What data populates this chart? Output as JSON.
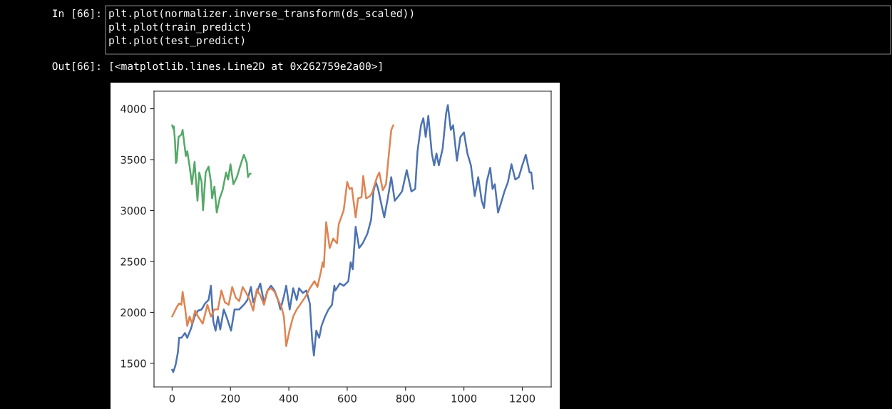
{
  "chart_data": {
    "type": "line",
    "annotations": [
      "In [66]:",
      "plt.plot(normalizer.inverse_transform(ds_scaled))",
      "plt.plot(train_predict)",
      "plt.plot(test_predict)",
      "Out[66]:",
      "[<matplotlib.lines.Line2D at 0x262759e2a00>]"
    ],
    "xlim": [
      -62,
      1299
    ],
    "ylim": [
      1268,
      4172
    ],
    "xticks": [
      0,
      200,
      400,
      600,
      800,
      1000,
      1200
    ],
    "yticks": [
      1500,
      2000,
      2500,
      3000,
      3500,
      4000
    ],
    "grid": false,
    "legend": false,
    "marker": "none",
    "line_style": "solid",
    "series": [
      {
        "color": "#4c72b0",
        "x": [
          0,
          4,
          12,
          20,
          24,
          32,
          44,
          52,
          65,
          77,
          89,
          101,
          113,
          125,
          133,
          141,
          149,
          157,
          165,
          177,
          189,
          202,
          214,
          230,
          246,
          258,
          270,
          278,
          290,
          302,
          315,
          327,
          339,
          351,
          363,
          371,
          383,
          391,
          403,
          415,
          427,
          435,
          448,
          460,
          472,
          480,
          486,
          494,
          504,
          512,
          524,
          536,
          548,
          556,
          559,
          575,
          588,
          604,
          612,
          619,
          629,
          641,
          653,
          669,
          682,
          690,
          698,
          706,
          718,
          727,
          739,
          751,
          763,
          776,
          788,
          804,
          820,
          833,
          841,
          853,
          861,
          869,
          878,
          890,
          898,
          906,
          914,
          927,
          939,
          945,
          955,
          963,
          976,
          988,
          1000,
          1012,
          1024,
          1037,
          1049,
          1061,
          1069,
          1078,
          1090,
          1098,
          1106,
          1117,
          1127,
          1139,
          1151,
          1163,
          1176,
          1188,
          1200,
          1212,
          1225,
          1231,
          1237
        ],
        "values": [
          1437,
          1414,
          1484,
          1611,
          1750,
          1750,
          1797,
          1750,
          1843,
          1959,
          2017,
          2029,
          2087,
          2122,
          2261,
          1913,
          1820,
          1959,
          1832,
          2029,
          1936,
          1820,
          2029,
          2029,
          2075,
          2122,
          2249,
          2098,
          2191,
          2284,
          2098,
          2214,
          2261,
          2214,
          2122,
          2029,
          2156,
          2261,
          2029,
          2237,
          2122,
          2237,
          2191,
          2214,
          2087,
          1727,
          1576,
          1820,
          1750,
          1867,
          1959,
          2029,
          2075,
          2261,
          2214,
          2284,
          2261,
          2307,
          2493,
          2423,
          2840,
          2632,
          2678,
          2771,
          2910,
          3188,
          3281,
          3212,
          3049,
          2933,
          3119,
          3328,
          3096,
          3142,
          3188,
          3397,
          3188,
          3212,
          3583,
          3838,
          3907,
          3722,
          3930,
          3560,
          3444,
          3560,
          3444,
          3606,
          3954,
          4035,
          3791,
          3838,
          3490,
          3722,
          3768,
          3560,
          3444,
          3142,
          3328,
          3096,
          3026,
          3281,
          3420,
          3212,
          3258,
          2980,
          3073,
          3188,
          3281,
          3455,
          3304,
          3328,
          3444,
          3548,
          3374,
          3374,
          3212
        ]
      },
      {
        "color": "#dd8452",
        "x": [
          0,
          16,
          24,
          32,
          36,
          44,
          52,
          60,
          68,
          79,
          89,
          105,
          121,
          133,
          145,
          157,
          169,
          181,
          194,
          206,
          218,
          230,
          242,
          254,
          266,
          278,
          290,
          302,
          315,
          327,
          339,
          351,
          363,
          375,
          383,
          391,
          402,
          415,
          427,
          444,
          460,
          472,
          488,
          498,
          510,
          516,
          520,
          528,
          540,
          552,
          565,
          571,
          588,
          600,
          608,
          616,
          629,
          637,
          649,
          655,
          665,
          678,
          686,
          702,
          710,
          722,
          733,
          743,
          751,
          758
        ],
        "values": [
          1959,
          2052,
          2087,
          2075,
          2203,
          2052,
          1867,
          1959,
          1890,
          2017,
          1959,
          1890,
          2075,
          1959,
          2029,
          2029,
          2214,
          2098,
          2075,
          2249,
          2145,
          2110,
          2249,
          2191,
          2122,
          2017,
          2226,
          2168,
          2075,
          2214,
          2237,
          2203,
          2122,
          2052,
          1959,
          1669,
          1818,
          1959,
          2029,
          2098,
          2168,
          2237,
          2307,
          2249,
          2400,
          2493,
          2446,
          2887,
          2632,
          2725,
          2678,
          2864,
          3003,
          3281,
          3212,
          3223,
          2933,
          3119,
          3130,
          3339,
          3119,
          3142,
          3177,
          3328,
          3374,
          3200,
          3258,
          3560,
          3791,
          3838
        ]
      },
      {
        "color": "#55a868",
        "x": [
          0,
          4,
          6,
          10,
          13,
          16,
          22,
          32,
          36,
          47,
          52,
          60,
          68,
          77,
          82,
          87,
          93,
          101,
          106,
          115,
          125,
          133,
          137,
          145,
          153,
          163,
          173,
          185,
          192,
          200,
          210,
          222,
          234,
          246,
          256,
          260,
          266,
          269
        ],
        "values": [
          3838,
          3803,
          3826,
          3675,
          3467,
          3490,
          3722,
          3745,
          3792,
          3536,
          3583,
          3432,
          3258,
          3478,
          3281,
          3096,
          3374,
          3281,
          3003,
          3374,
          3432,
          3281,
          3119,
          3235,
          2980,
          3119,
          3200,
          3374,
          3304,
          3455,
          3258,
          3328,
          3444,
          3548,
          3467,
          3328,
          3362,
          3362
        ]
      }
    ]
  }
}
